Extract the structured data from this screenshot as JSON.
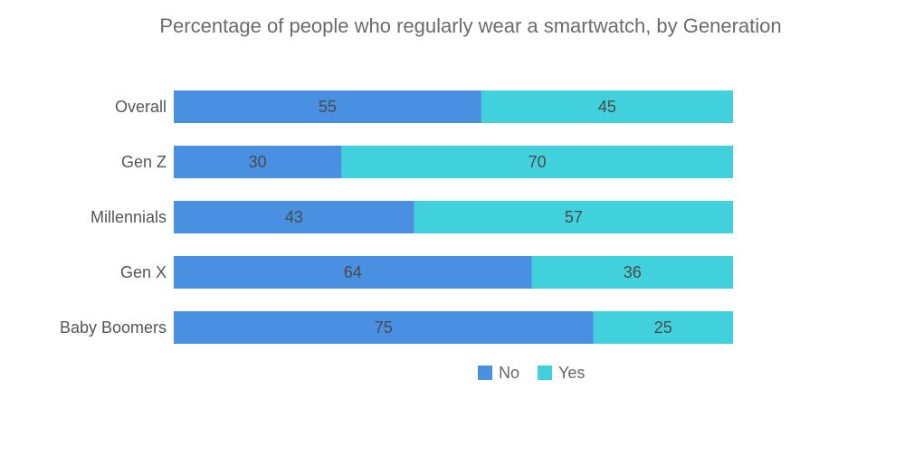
{
  "chart_data": {
    "type": "bar",
    "orientation": "horizontal",
    "stacked": true,
    "title": "Percentage of people who regularly wear a smartwatch, by Generation",
    "categories": [
      "Overall",
      "Gen Z",
      "Millennials",
      "Gen X",
      "Baby Boomers"
    ],
    "series": [
      {
        "name": "No",
        "color": "#4a90e2",
        "values": [
          55,
          30,
          43,
          64,
          75
        ]
      },
      {
        "name": "Yes",
        "color": "#41d1dc",
        "values": [
          45,
          70,
          57,
          36,
          25
        ]
      }
    ],
    "xlim": [
      0,
      100
    ],
    "xlabel": "",
    "ylabel": "",
    "grid": false,
    "legend": "bottom"
  }
}
